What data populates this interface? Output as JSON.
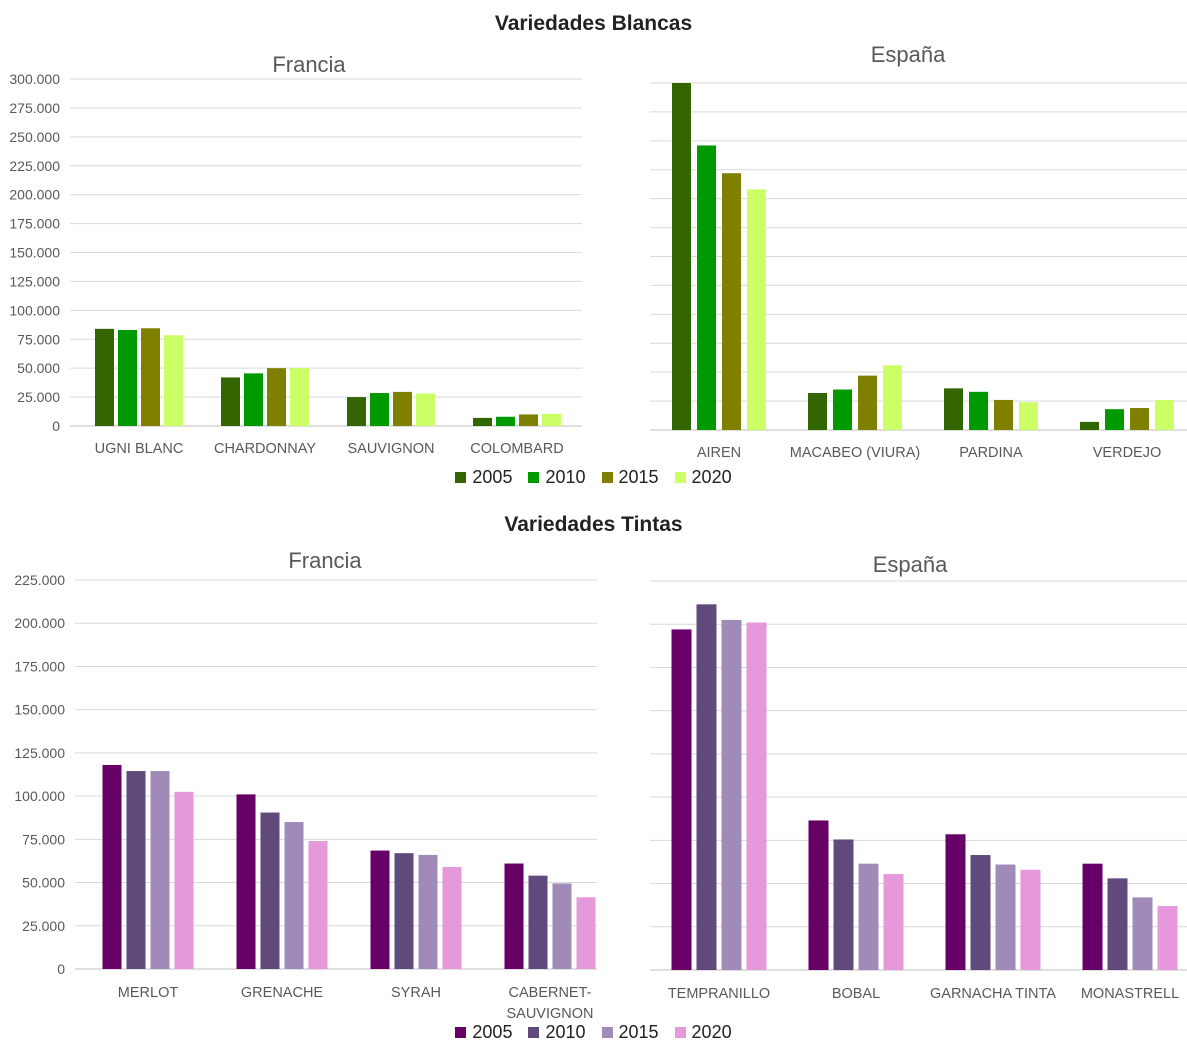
{
  "white_title": "Variedades Blancas",
  "red_title": "Variedades Tintas",
  "white_colors": [
    "#336600",
    "#009900",
    "#808000",
    "#CCFF66"
  ],
  "red_colors": [
    "#660066",
    "#604A7B",
    "#9F8AB8",
    "#E699DA"
  ],
  "white_legend": [
    "2005",
    "2010",
    "2015",
    "2020"
  ],
  "red_legend": [
    "2005",
    "2010",
    "2015",
    "2020"
  ],
  "chart_data": [
    {
      "type": "bar",
      "title": "Francia",
      "categories": [
        "UGNI BLANC",
        "CHARDONNAY",
        "SAUVIGNON",
        "COLOMBARD"
      ],
      "series": [
        {
          "name": "2005",
          "values": [
            84000,
            42000,
            25000,
            7000
          ]
        },
        {
          "name": "2010",
          "values": [
            83000,
            45500,
            28500,
            8000
          ]
        },
        {
          "name": "2015",
          "values": [
            84500,
            50000,
            29500,
            10000
          ]
        },
        {
          "name": "2020",
          "values": [
            78500,
            50000,
            28000,
            10500
          ]
        }
      ],
      "ylim": [
        0,
        300000
      ],
      "yticks": [
        "300.000",
        "275.000",
        "250.000",
        "225.000",
        "200.000",
        "175.000",
        "150.000",
        "125.000",
        "100.000",
        "75.000",
        "50.000",
        "25.000",
        "0"
      ]
    },
    {
      "type": "bar",
      "title": "España",
      "categories": [
        "AIREN",
        "MACABEO (VIURA)",
        "PARDINA",
        "VERDEJO"
      ],
      "series": [
        {
          "name": "2005",
          "values": [
            300000,
            32000,
            36000,
            7000
          ]
        },
        {
          "name": "2010",
          "values": [
            246000,
            35000,
            33000,
            18000
          ]
        },
        {
          "name": "2015",
          "values": [
            222000,
            47000,
            26000,
            19000
          ]
        },
        {
          "name": "2020",
          "values": [
            208000,
            56000,
            24000,
            26000
          ]
        }
      ],
      "ylim": [
        0,
        300000
      ]
    },
    {
      "type": "bar",
      "title": "Francia",
      "categories": [
        "MERLOT",
        "GRENACHE",
        "SYRAH",
        "CABERNET-SAUVIGNON"
      ],
      "series": [
        {
          "name": "2005",
          "values": [
            118000,
            101000,
            68500,
            61000
          ]
        },
        {
          "name": "2010",
          "values": [
            114500,
            90500,
            67000,
            54000
          ]
        },
        {
          "name": "2015",
          "values": [
            114500,
            85000,
            66000,
            49500
          ]
        },
        {
          "name": "2020",
          "values": [
            102500,
            74000,
            59000,
            41500
          ]
        }
      ],
      "ylim": [
        0,
        225000
      ],
      "yticks": [
        "225.000",
        "200.000",
        "175.000",
        "150.000",
        "125.000",
        "100.000",
        "75.000",
        "50.000",
        "25.000",
        "0"
      ]
    },
    {
      "type": "bar",
      "title": "España",
      "categories": [
        "TEMPRANILLO",
        "BOBAL",
        "GARNACHA TINTA",
        "MONASTRELL"
      ],
      "series": [
        {
          "name": "2005",
          "values": [
            197000,
            86500,
            78500,
            61500
          ]
        },
        {
          "name": "2010",
          "values": [
            211500,
            75500,
            66500,
            53000
          ]
        },
        {
          "name": "2015",
          "values": [
            202500,
            61500,
            61000,
            42000
          ]
        },
        {
          "name": "2020",
          "values": [
            201000,
            55500,
            58000,
            37000
          ]
        }
      ],
      "ylim": [
        0,
        225000
      ]
    }
  ]
}
